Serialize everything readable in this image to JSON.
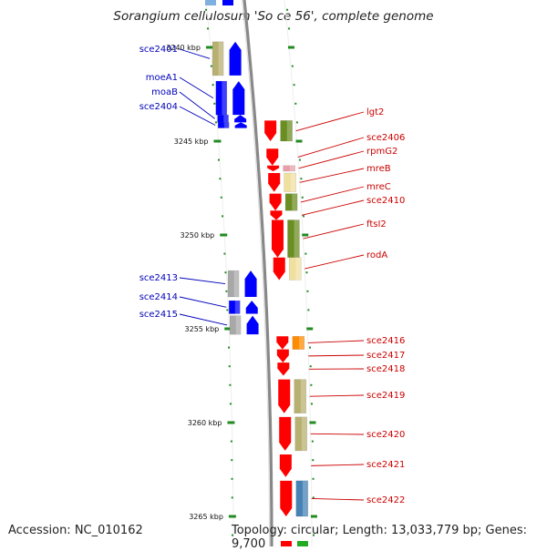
{
  "title": "Sorangium cellulosum 'So ce 56', complete genome",
  "accession": "Accession: NC_010162",
  "topology": "Topology: circular; Length: 13,033,779 bp; Genes: 9,700",
  "scale": {
    "unit": "kbp",
    "ticks": [
      "3240 kbp",
      "3245 kbp",
      "3250 kbp",
      "3255 kbp",
      "3260 kbp",
      "3265 kbp"
    ]
  },
  "colors": {
    "reverse_strand": "#0000ff",
    "forward_strand": "#ff0000",
    "label_reverse": "#0000bb",
    "label_forward": "#cc0000",
    "scale_tick": "#228b22",
    "backbone": "#888888",
    "cog_khaki": "#b8b070",
    "cog_olive": "#6b8e23",
    "cog_pale": "#f0e0a0",
    "cog_gray": "#a8a8a8",
    "cog_orange": "#ff8c00",
    "cog_steelblue": "#4682b4",
    "cog_pink": "#e8a0a8"
  },
  "reverse_genes": [
    {
      "name": "sce2401",
      "start_kbp": 3239.7,
      "end_kbp": 3241.5,
      "cog": "cog_khaki"
    },
    {
      "name": "moeA1",
      "start_kbp": 3241.8,
      "end_kbp": 3243.6,
      "cog": "cog_reverse"
    },
    {
      "name": "moaB",
      "start_kbp": 3243.6,
      "end_kbp": 3244.0,
      "cog": "cog_reverse"
    },
    {
      "name": "sce2404",
      "start_kbp": 3244.0,
      "end_kbp": 3244.3,
      "cog": "cog_reverse"
    },
    {
      "name": "sce2413",
      "start_kbp": 3251.9,
      "end_kbp": 3253.3,
      "cog": "cog_gray"
    },
    {
      "name": "sce2414",
      "start_kbp": 3253.5,
      "end_kbp": 3254.2,
      "cog": "cog_reverse"
    },
    {
      "name": "sce2415",
      "start_kbp": 3254.3,
      "end_kbp": 3255.3,
      "cog": "cog_gray"
    }
  ],
  "forward_genes": [
    {
      "name": "lgt2",
      "start_kbp": 3243.9,
      "end_kbp": 3245.0,
      "cog": "cog_olive"
    },
    {
      "name": "sce2406",
      "start_kbp": 3245.4,
      "end_kbp": 3246.3,
      "cog": "cog_none"
    },
    {
      "name": "rpmG2",
      "start_kbp": 3246.3,
      "end_kbp": 3246.6,
      "cog": "cog_pink"
    },
    {
      "name": "mreB",
      "start_kbp": 3246.7,
      "end_kbp": 3247.7,
      "cog": "cog_pale"
    },
    {
      "name": "mreC",
      "start_kbp": 3247.8,
      "end_kbp": 3248.7,
      "cog": "cog_olive"
    },
    {
      "name": "sce2410",
      "start_kbp": 3248.7,
      "end_kbp": 3249.2,
      "cog": "cog_none"
    },
    {
      "name": "ftsI2",
      "start_kbp": 3249.2,
      "end_kbp": 3251.2,
      "cog": "cog_olive"
    },
    {
      "name": "rodA",
      "start_kbp": 3251.2,
      "end_kbp": 3252.4,
      "cog": "cog_pale"
    },
    {
      "name": "sce2416",
      "start_kbp": 3255.4,
      "end_kbp": 3256.1,
      "cog": "cog_orange"
    },
    {
      "name": "sce2417",
      "start_kbp": 3256.1,
      "end_kbp": 3256.8,
      "cog": "cog_none"
    },
    {
      "name": "sce2418",
      "start_kbp": 3256.8,
      "end_kbp": 3257.5,
      "cog": "cog_none"
    },
    {
      "name": "sce2419",
      "start_kbp": 3257.7,
      "end_kbp": 3259.5,
      "cog": "cog_khaki"
    },
    {
      "name": "sce2420",
      "start_kbp": 3259.7,
      "end_kbp": 3261.5,
      "cog": "cog_khaki"
    },
    {
      "name": "sce2421",
      "start_kbp": 3261.7,
      "end_kbp": 3262.9,
      "cog": "cog_none"
    },
    {
      "name": "sce2422",
      "start_kbp": 3263.1,
      "end_kbp": 3265.0,
      "cog": "cog_steelblue"
    }
  ]
}
